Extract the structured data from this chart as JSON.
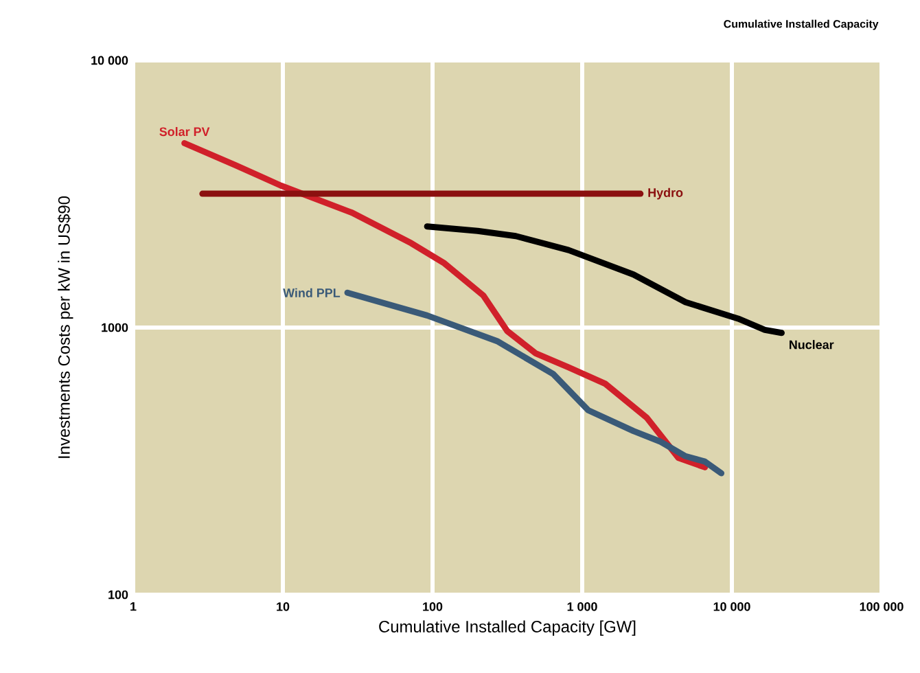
{
  "chart_data": {
    "type": "line",
    "title": "Cumulative Installed Capacity",
    "xlabel": "Cumulative Installed Capacity [GW]",
    "ylabel": "Investments Costs per kW in US$90",
    "log": "xy",
    "grid": true,
    "xlim": [
      1,
      100000
    ],
    "ylim": [
      100,
      10000
    ],
    "xticks": [
      1,
      10,
      100,
      {
        "value": 1000,
        "label": "1 000"
      },
      {
        "value": 10000,
        "label": "10 000"
      },
      {
        "value": 100000,
        "label": "100 000"
      }
    ],
    "yticks": [
      100,
      1000,
      {
        "value": 10000,
        "label": "10 000"
      }
    ],
    "series": [
      {
        "name": "Solar PV",
        "color": "#d0202a",
        "x": [
          2.2,
          4.8,
          9.7,
          29,
          72,
          120,
          218,
          316,
          490,
          810,
          1420,
          2700,
          4400,
          6600
        ],
        "values": [
          4900,
          4060,
          3400,
          2690,
          2070,
          1740,
          1320,
          970,
          800,
          710,
          617,
          460,
          325,
          300
        ]
      },
      {
        "name": "Hydro",
        "color": "#8b1010",
        "x": [
          2.9,
          2450
        ],
        "values": [
          3170,
          3170
        ]
      },
      {
        "name": "Nuclear",
        "color": "#000000",
        "x": [
          92,
          200,
          360,
          810,
          2200,
          4900,
          11000,
          16600,
          21500
        ],
        "values": [
          2390,
          2300,
          2200,
          1950,
          1580,
          1245,
          1080,
          980,
          955
        ]
      },
      {
        "name": "Wind PPL",
        "color": "#3a5a78",
        "x": [
          27,
          92,
          270,
          640,
          1100,
          2200,
          3300,
          4900,
          6600,
          8500
        ],
        "values": [
          1350,
          1110,
          890,
          670,
          490,
          410,
          375,
          330,
          315,
          285
        ]
      }
    ]
  }
}
